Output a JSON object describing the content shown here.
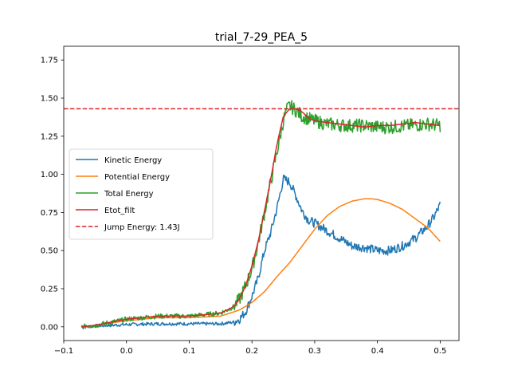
{
  "chart_data": {
    "type": "line",
    "title": "trial_7-29_PEA_5",
    "xlabel": "",
    "ylabel": "",
    "xlim": [
      -0.1,
      0.53
    ],
    "ylim": [
      -0.09,
      1.84
    ],
    "xticks": [
      -0.1,
      0.0,
      0.1,
      0.2,
      0.3,
      0.4,
      0.5
    ],
    "xtick_labels": [
      "−0.1",
      "0.0",
      "0.1",
      "0.2",
      "0.3",
      "0.4",
      "0.5"
    ],
    "yticks": [
      0.0,
      0.25,
      0.5,
      0.75,
      1.0,
      1.25,
      1.5,
      1.75
    ],
    "ytick_labels": [
      "0.00",
      "0.25",
      "0.50",
      "0.75",
      "1.00",
      "1.25",
      "1.50",
      "1.75"
    ],
    "grid": false,
    "legend_position": "center-left",
    "series": [
      {
        "name": "Kinetic Energy",
        "color": "#1f77b4",
        "noise": 0.03,
        "x": [
          -0.072,
          -0.05,
          0.0,
          0.05,
          0.1,
          0.15,
          0.17,
          0.18,
          0.19,
          0.2,
          0.21,
          0.22,
          0.23,
          0.24,
          0.25,
          0.26,
          0.27,
          0.28,
          0.29,
          0.3,
          0.32,
          0.34,
          0.36,
          0.38,
          0.4,
          0.42,
          0.44,
          0.46,
          0.48,
          0.49,
          0.5
        ],
        "y": [
          0.0,
          0.005,
          0.015,
          0.02,
          0.02,
          0.02,
          0.03,
          0.05,
          0.1,
          0.2,
          0.32,
          0.5,
          0.62,
          0.78,
          0.97,
          0.95,
          0.86,
          0.76,
          0.7,
          0.68,
          0.63,
          0.58,
          0.53,
          0.52,
          0.5,
          0.5,
          0.53,
          0.58,
          0.66,
          0.72,
          0.8
        ]
      },
      {
        "name": "Potential Energy",
        "color": "#ff7f0e",
        "noise": 0,
        "x": [
          -0.072,
          -0.05,
          0.0,
          0.05,
          0.1,
          0.15,
          0.18,
          0.2,
          0.22,
          0.24,
          0.26,
          0.28,
          0.3,
          0.32,
          0.34,
          0.36,
          0.38,
          0.39,
          0.4,
          0.42,
          0.44,
          0.46,
          0.48,
          0.5
        ],
        "y": [
          0.0,
          0.01,
          0.04,
          0.06,
          0.06,
          0.07,
          0.11,
          0.16,
          0.23,
          0.33,
          0.42,
          0.53,
          0.64,
          0.73,
          0.79,
          0.825,
          0.84,
          0.84,
          0.835,
          0.81,
          0.77,
          0.71,
          0.65,
          0.56
        ]
      },
      {
        "name": "Total Energy",
        "color": "#2ca02c",
        "noise": 0.045,
        "x": [
          -0.072,
          -0.05,
          0.0,
          0.05,
          0.1,
          0.15,
          0.17,
          0.18,
          0.19,
          0.2,
          0.21,
          0.22,
          0.23,
          0.24,
          0.25,
          0.255,
          0.26,
          0.27,
          0.28,
          0.3,
          0.32,
          0.35,
          0.38,
          0.4,
          0.42,
          0.45,
          0.48,
          0.5
        ],
        "y": [
          0.0,
          0.01,
          0.05,
          0.07,
          0.07,
          0.09,
          0.13,
          0.18,
          0.27,
          0.38,
          0.55,
          0.75,
          0.95,
          1.15,
          1.35,
          1.42,
          1.45,
          1.42,
          1.38,
          1.35,
          1.33,
          1.32,
          1.32,
          1.31,
          1.31,
          1.32,
          1.33,
          1.32
        ]
      },
      {
        "name": "Etot_filt",
        "color": "#d62728",
        "noise": 0,
        "x": [
          -0.072,
          -0.05,
          0.0,
          0.05,
          0.1,
          0.15,
          0.17,
          0.18,
          0.19,
          0.2,
          0.21,
          0.22,
          0.23,
          0.24,
          0.25,
          0.26,
          0.27,
          0.28,
          0.29,
          0.3,
          0.32,
          0.34,
          0.36,
          0.38,
          0.4,
          0.42,
          0.44,
          0.46,
          0.48,
          0.5
        ],
        "y": [
          0.0,
          0.01,
          0.05,
          0.07,
          0.07,
          0.09,
          0.13,
          0.18,
          0.27,
          0.4,
          0.56,
          0.76,
          0.97,
          1.2,
          1.38,
          1.43,
          1.43,
          1.41,
          1.37,
          1.35,
          1.34,
          1.33,
          1.32,
          1.31,
          1.32,
          1.32,
          1.33,
          1.34,
          1.33,
          1.32
        ]
      }
    ],
    "reference_line": {
      "name": "Jump Energy: 1.43J",
      "y": 1.43,
      "color": "#d62728",
      "style": "dashed"
    }
  }
}
